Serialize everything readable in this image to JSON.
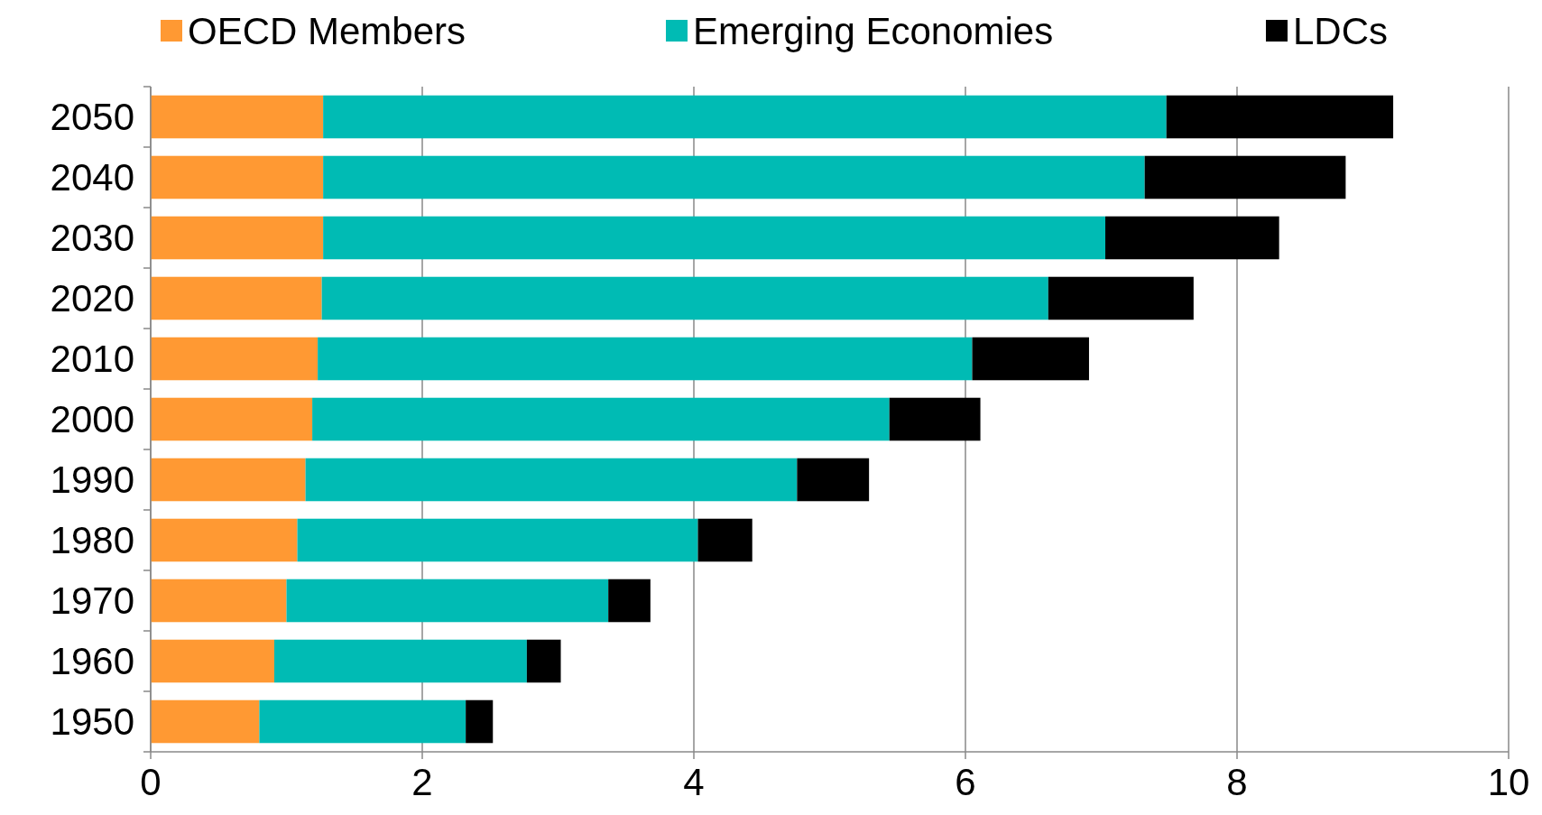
{
  "chart_data": {
    "type": "bar",
    "orientation": "horizontal",
    "stacked": true,
    "categories": [
      "2050",
      "2040",
      "2030",
      "2020",
      "2010",
      "2000",
      "1990",
      "1980",
      "1970",
      "1960",
      "1950"
    ],
    "series": [
      {
        "name": "OECD Members",
        "color": "#ff9933",
        "values": [
          1.27,
          1.27,
          1.27,
          1.26,
          1.23,
          1.19,
          1.14,
          1.08,
          1.0,
          0.91,
          0.8
        ]
      },
      {
        "name": "Emerging Economies",
        "color": "#00bbb4",
        "values": [
          6.21,
          6.05,
          5.76,
          5.35,
          4.82,
          4.25,
          3.62,
          2.95,
          2.37,
          1.86,
          1.52
        ]
      },
      {
        "name": "LDCs",
        "color": "#000000",
        "values": [
          1.67,
          1.48,
          1.28,
          1.07,
          0.86,
          0.67,
          0.53,
          0.4,
          0.31,
          0.25,
          0.2
        ]
      }
    ],
    "xlim": [
      0,
      10
    ],
    "xticks": [
      0,
      2,
      4,
      6,
      8,
      10
    ],
    "grid": "x",
    "legend": "top"
  }
}
